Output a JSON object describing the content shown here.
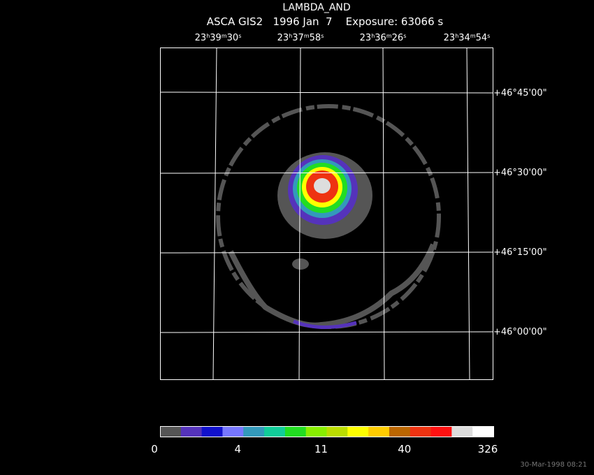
{
  "header": {
    "title": "LAMBDA_AND",
    "subtitle": "ASCA GIS2   1996 Jan  7    Exposure: 63066 s"
  },
  "ra_labels": [
    "23h39m30s",
    "23h37m58s",
    "23h36m26s",
    "23h34m54s"
  ],
  "dec_labels": [
    "+46°45'00\"",
    "+46°30'00\"",
    "+46°15'00\"",
    "+46°00'00\""
  ],
  "colorbar": {
    "colors": [
      "#555555",
      "#5533bb",
      "#1111cc",
      "#7777ff",
      "#3399bb",
      "#11cc99",
      "#22dd22",
      "#88ee00",
      "#bbdd00",
      "#ffff00",
      "#ffcc00",
      "#bb6600",
      "#ee3311",
      "#ff1111",
      "#dddddd",
      "#ffffff"
    ],
    "labels": [
      "0",
      "4",
      "11",
      "40",
      "326"
    ]
  },
  "timestamp": "30-Mar-1998 08:21"
}
